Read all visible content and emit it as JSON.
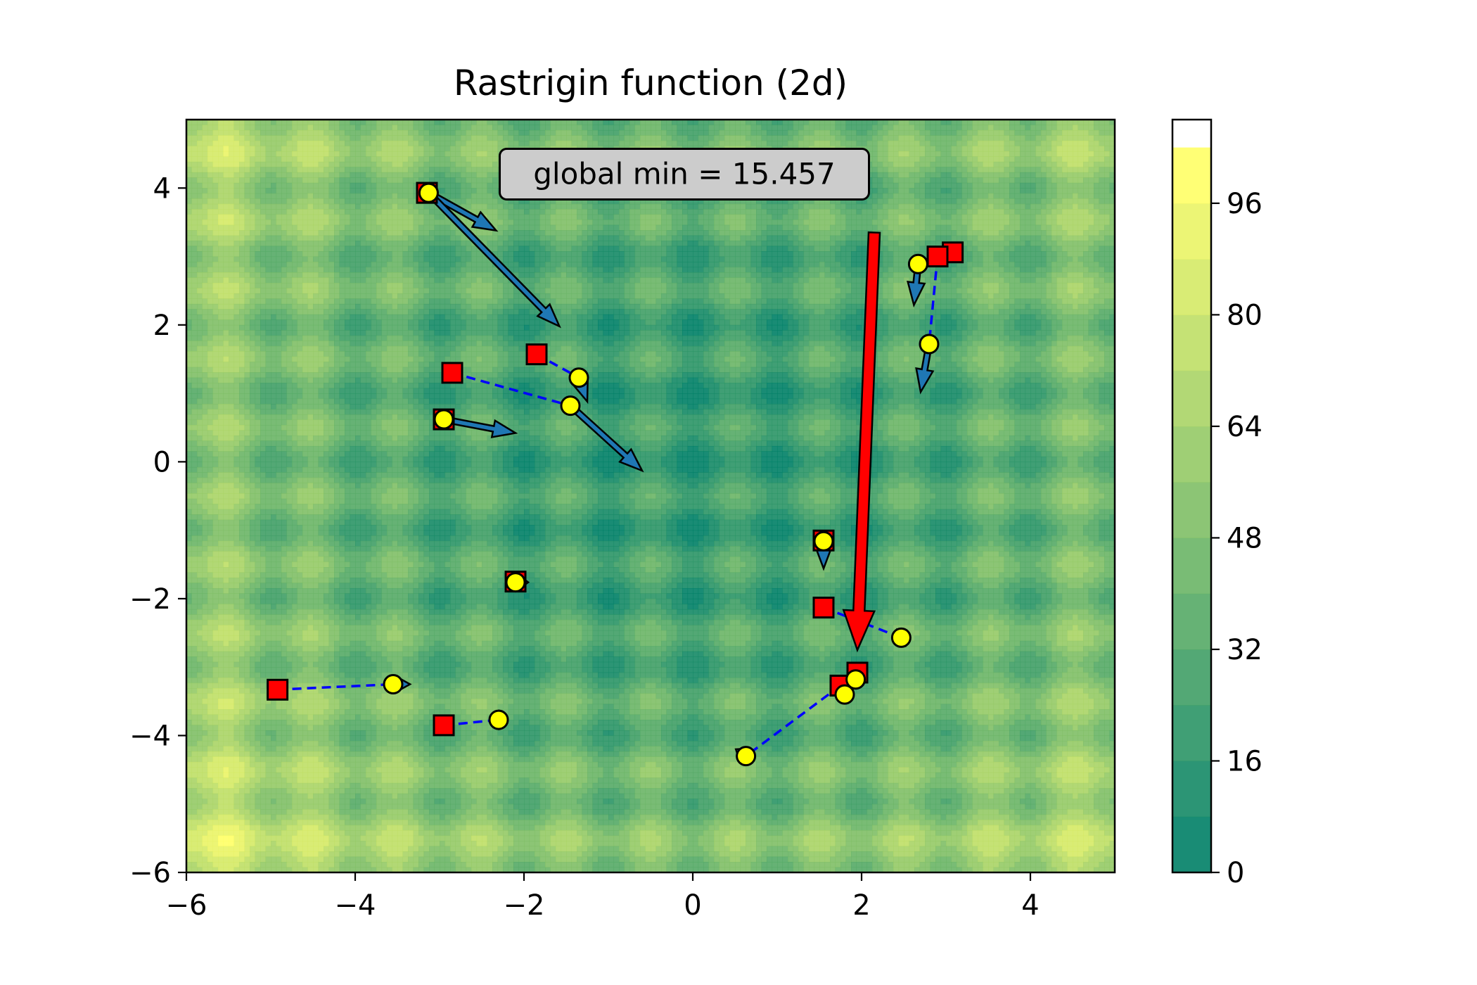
{
  "chart_data": {
    "type": "contour",
    "title": "Rastrigin function (2d)",
    "xlabel": "",
    "ylabel": "",
    "xlim": [
      -6,
      5
    ],
    "ylim": [
      -6,
      5
    ],
    "xticks": [
      -6,
      -4,
      -2,
      0,
      2,
      4
    ],
    "yticks": [
      -6,
      -4,
      -2,
      0,
      2,
      4
    ],
    "xticklabels": [
      "−6",
      "−4",
      "−2",
      "0",
      "2",
      "4"
    ],
    "yticklabels": [
      "−6",
      "−4",
      "−2",
      "0",
      "2",
      "4"
    ],
    "grid": false,
    "colormap": "summer",
    "colorbar": {
      "min": 0,
      "max": 108,
      "levels": [
        0,
        8,
        16,
        24,
        32,
        40,
        48,
        56,
        64,
        72,
        80,
        88,
        96,
        104
      ],
      "ticks": [
        0,
        16,
        32,
        48,
        64,
        80,
        96
      ],
      "ticklabels": [
        "0",
        "16",
        "32",
        "48",
        "64",
        "80",
        "96"
      ]
    },
    "annotation": {
      "text": "global min = 15.457",
      "x": -0.1,
      "y": 4.1
    },
    "particles": [
      {
        "prev": [
          -3.15,
          3.93
        ],
        "curr": [
          -3.13,
          3.93
        ],
        "vel": [
          0.8,
          -0.55
        ]
      },
      {
        "prev": [
          -3.15,
          3.93
        ],
        "curr": [
          -3.13,
          3.93
        ],
        "vel": [
          1.55,
          -1.95
        ]
      },
      {
        "prev": [
          3.08,
          3.06
        ],
        "curr": [
          2.67,
          2.89
        ],
        "vel": [
          -0.05,
          -0.6
        ]
      },
      {
        "prev": [
          2.9,
          3.0
        ],
        "curr": [
          2.8,
          1.72
        ],
        "vel": [
          -0.1,
          -0.7
        ]
      },
      {
        "prev": [
          -1.85,
          1.57
        ],
        "curr": [
          -1.35,
          1.23
        ],
        "vel": [
          0.1,
          -0.35
        ]
      },
      {
        "prev": [
          -2.85,
          1.3
        ],
        "curr": [
          -1.45,
          0.82
        ],
        "vel": [
          0.85,
          -0.95
        ]
      },
      {
        "prev": [
          -2.95,
          0.62
        ],
        "curr": [
          -2.95,
          0.62
        ],
        "vel": [
          0.85,
          -0.2
        ]
      },
      {
        "prev": [
          1.55,
          -1.15
        ],
        "curr": [
          1.55,
          -1.16
        ],
        "vel": [
          0.0,
          -0.4
        ]
      },
      {
        "prev": [
          -2.1,
          -1.75
        ],
        "curr": [
          -2.1,
          -1.76
        ],
        "vel": [
          0.15,
          0.0
        ]
      },
      {
        "prev": [
          1.55,
          -2.13
        ],
        "curr": [
          2.47,
          -2.57
        ],
        "vel": [
          -0.08,
          -0.05
        ]
      },
      {
        "prev": [
          -4.92,
          -3.33
        ],
        "curr": [
          -3.55,
          -3.25
        ],
        "vel": [
          0.2,
          0.0
        ]
      },
      {
        "prev": [
          -2.95,
          -3.85
        ],
        "curr": [
          -2.3,
          -3.77
        ],
        "vel": [
          0.1,
          0.0
        ]
      },
      {
        "prev": [
          1.95,
          -3.08
        ],
        "curr": [
          1.93,
          -3.18
        ],
        "vel": [
          0.0,
          0.0
        ]
      },
      {
        "prev": [
          1.75,
          -3.27
        ],
        "curr": [
          0.63,
          -4.3
        ],
        "vel": [
          -0.12,
          0.1
        ]
      },
      {
        "prev": [
          1.75,
          -3.27
        ],
        "curr": [
          1.8,
          -3.4
        ],
        "vel": [
          0.0,
          0.0
        ]
      }
    ],
    "gbest_arrow": {
      "from": [
        2.15,
        3.35
      ],
      "to": [
        1.95,
        -2.75
      ]
    },
    "colors": {
      "prev_marker": "#ff0000",
      "curr_marker": "#ffff00",
      "trail": "#0000ff",
      "arrow": "#1f77b4",
      "gbest_arrow": "#ff0000",
      "box_fill": "#cccccc"
    }
  }
}
